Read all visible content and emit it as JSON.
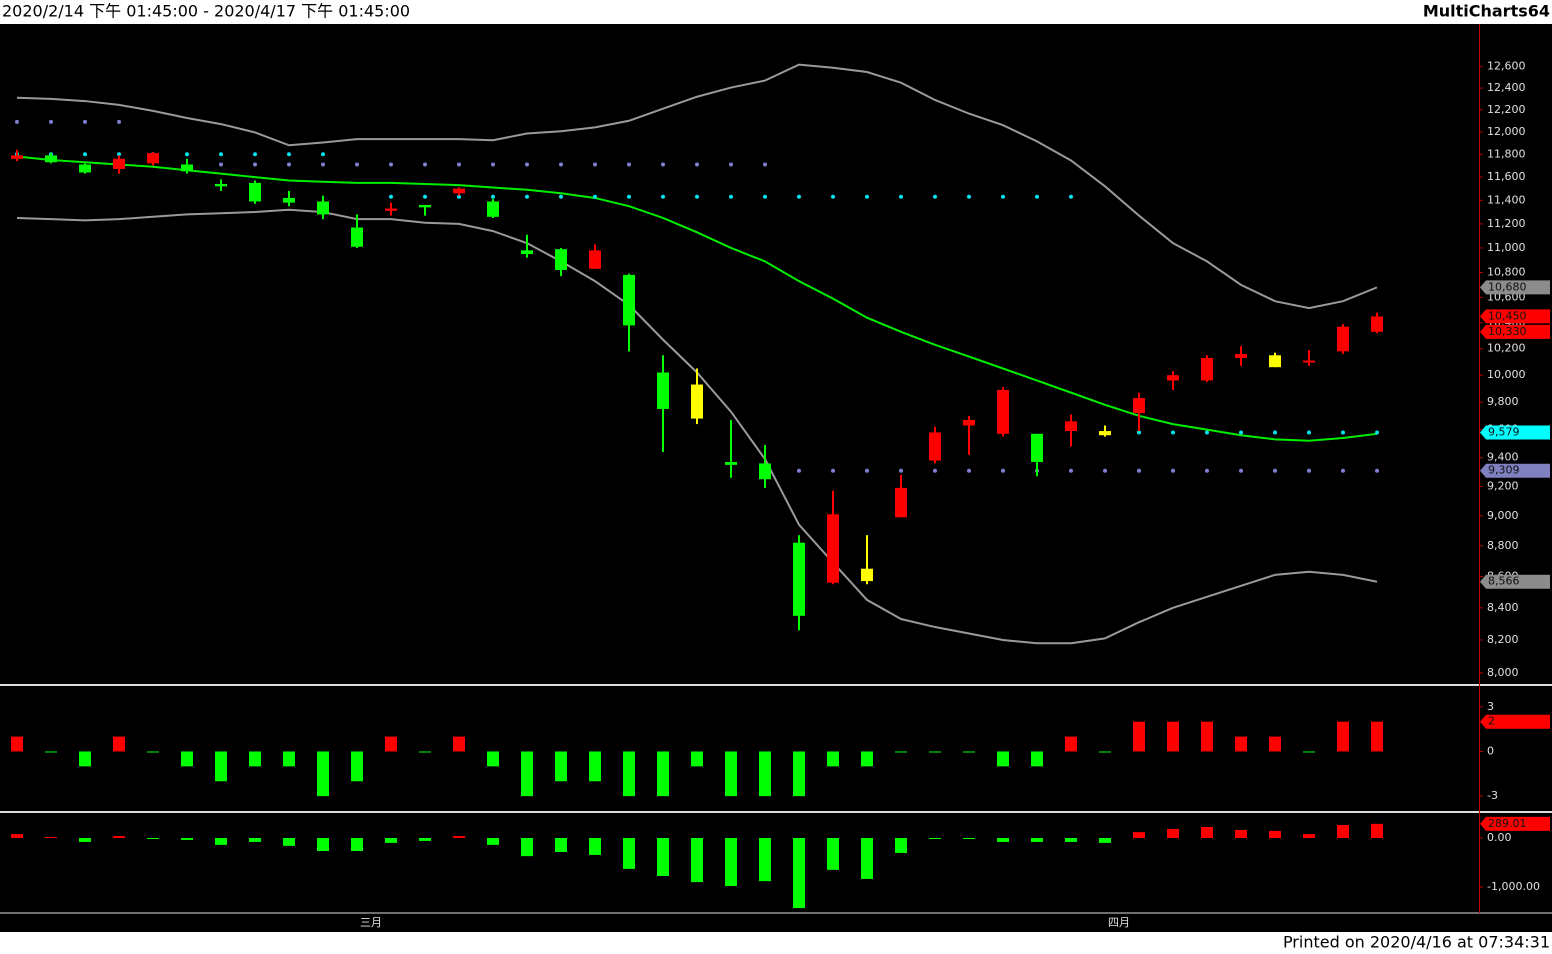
{
  "header": {
    "range": "2020/2/14 下午 01:45:00 - 2020/4/17 下午 01:45:00",
    "app": "MultiCharts64"
  },
  "footer": "Printed on 2020/4/16 at 07:34:31",
  "chart_data": [
    {
      "type": "candlestick",
      "categories": [
        null,
        null,
        null,
        null,
        null,
        null,
        null,
        null,
        null,
        null,
        "三月",
        null,
        null,
        null,
        null,
        null,
        null,
        null,
        null,
        null,
        null,
        null,
        null,
        null,
        null,
        null,
        null,
        null,
        null,
        null,
        null,
        null,
        "四月",
        null,
        null,
        null,
        null,
        null,
        null,
        null,
        null
      ],
      "open": [
        11760,
        11790,
        11710,
        11670,
        11720,
        11710,
        11540,
        11550,
        11420,
        11390,
        11170,
        11310,
        11360,
        11460,
        11390,
        10980,
        10990,
        10830,
        10780,
        10020,
        9930,
        9370,
        9360,
        8820,
        8560,
        8650,
        8990,
        9380,
        9630,
        9570,
        9570,
        9590,
        9560,
        9720,
        9960,
        9960,
        10130,
        10060,
        10100,
        10180,
        10330
      ],
      "high": [
        11840,
        11810,
        11720,
        11790,
        11820,
        11760,
        11580,
        11570,
        11480,
        11440,
        11280,
        11380,
        11360,
        11510,
        11410,
        11110,
        11000,
        11030,
        10790,
        10150,
        10050,
        9670,
        9490,
        8870,
        9170,
        8870,
        9280,
        9620,
        9700,
        9910,
        9570,
        9710,
        9630,
        9870,
        10030,
        10150,
        10220,
        10170,
        10190,
        10390,
        10480
      ],
      "low": [
        11740,
        11720,
        11630,
        11630,
        11700,
        11630,
        11480,
        11370,
        11350,
        11240,
        11000,
        11270,
        11270,
        11440,
        11250,
        10920,
        10770,
        10830,
        10180,
        9440,
        9640,
        9260,
        9190,
        8260,
        8550,
        8550,
        8990,
        9360,
        9420,
        9550,
        9270,
        9480,
        9550,
        9590,
        9890,
        9950,
        10070,
        10060,
        10070,
        10160,
        10320
      ],
      "close": [
        11790,
        11730,
        11640,
        11760,
        11810,
        11650,
        11520,
        11390,
        11380,
        11280,
        11010,
        11330,
        11340,
        11500,
        11260,
        10950,
        10820,
        10980,
        10380,
        9750,
        9680,
        9350,
        9250,
        8350,
        9010,
        8570,
        9190,
        9580,
        9670,
        9890,
        9370,
        9660,
        9590,
        9830,
        10000,
        10130,
        10160,
        10150,
        10110,
        10370,
        10450
      ],
      "candle_colors": [
        "#ff0000",
        "#00ff00",
        "#00ff00",
        "#ff0000",
        "#ff0000",
        "#00ff00",
        "#00ff00",
        "#00ff00",
        "#00ff00",
        "#00ff00",
        "#00ff00",
        "#ff0000",
        "#00ff00",
        "#ff0000",
        "#00ff00",
        "#00ff00",
        "#00ff00",
        "#ff0000",
        "#00ff00",
        "#00ff00",
        "#ffff00",
        "#00ff00",
        "#00ff00",
        "#00ff00",
        "#ff0000",
        "#ffff00",
        "#ff0000",
        "#ff0000",
        "#ff0000",
        "#ff0000",
        "#00ff00",
        "#ff0000",
        "#ffff00",
        "#ff0000",
        "#ff0000",
        "#ff0000",
        "#ff0000",
        "#ffff00",
        "#ff0000",
        "#ff0000",
        "#ff0000"
      ],
      "lines": [
        {
          "color": "#9a9a9a",
          "values": [
            12310,
            12300,
            12280,
            12245,
            12190,
            12125,
            12070,
            11995,
            11880,
            11905,
            11935,
            11935,
            11935,
            11935,
            11925,
            11985,
            12005,
            12040,
            12100,
            12210,
            12320,
            12405,
            12470,
            12620,
            12590,
            12550,
            12450,
            12290,
            12165,
            12060,
            11915,
            11745,
            11520,
            11270,
            11040,
            10890,
            10700,
            10570,
            10515,
            10570,
            10680
          ]
        },
        {
          "color": "#9a9a9a",
          "values": [
            11250,
            11240,
            11230,
            11240,
            11260,
            11280,
            11290,
            11300,
            11320,
            11300,
            11240,
            11240,
            11210,
            11200,
            11140,
            11040,
            10890,
            10730,
            10540,
            10270,
            10020,
            9730,
            9390,
            8940,
            8690,
            8450,
            8330,
            8280,
            8240,
            8200,
            8180,
            8180,
            8210,
            8310,
            8400,
            8470,
            8540,
            8610,
            8630,
            8610,
            8566
          ]
        },
        {
          "color": "#00ee00",
          "values": [
            11780,
            11750,
            11730,
            11710,
            11690,
            11660,
            11630,
            11600,
            11570,
            11560,
            11550,
            11550,
            11540,
            11530,
            11510,
            11490,
            11460,
            11420,
            11350,
            11250,
            11130,
            11000,
            10890,
            10730,
            10590,
            10440,
            10330,
            10230,
            10140,
            10050,
            9960,
            9870,
            9780,
            9700,
            9640,
            9600,
            9560,
            9530,
            9520,
            9540,
            9570
          ]
        }
      ],
      "dots": [
        {
          "color": "#8080d0",
          "values": [
            12090,
            12090,
            12090,
            12090,
            null,
            null,
            null,
            null,
            null,
            null,
            null,
            null,
            null,
            null,
            null,
            null,
            null,
            null,
            null,
            null,
            null,
            null,
            null,
            null,
            null,
            null,
            null,
            null,
            null,
            null,
            null,
            null,
            null,
            null,
            null,
            null,
            null,
            null,
            null,
            null,
            null
          ]
        },
        {
          "color": "#00e5ee",
          "values": [
            11800,
            11800,
            11800,
            11800,
            11800,
            11800,
            11800,
            11800,
            11800,
            11800,
            null,
            null,
            null,
            null,
            null,
            null,
            null,
            null,
            null,
            null,
            null,
            null,
            null,
            null,
            null,
            null,
            null,
            null,
            null,
            null,
            null,
            null,
            null,
            null,
            null,
            null,
            null,
            null,
            null,
            null,
            null
          ]
        },
        {
          "color": "#8080d0",
          "values": [
            null,
            null,
            null,
            null,
            null,
            null,
            11710,
            11710,
            11710,
            11710,
            11710,
            11710,
            11710,
            11710,
            11710,
            11710,
            11710,
            11710,
            11710,
            11710,
            11710,
            11710,
            11710,
            null,
            null,
            null,
            null,
            null,
            null,
            null,
            null,
            null,
            null,
            null,
            null,
            null,
            null,
            null,
            null,
            null,
            null
          ]
        },
        {
          "color": "#00e5ee",
          "values": [
            null,
            null,
            null,
            null,
            null,
            null,
            null,
            null,
            null,
            null,
            null,
            11430,
            11430,
            11430,
            11430,
            11430,
            11430,
            11430,
            11430,
            11430,
            11430,
            11430,
            11430,
            11430,
            11430,
            11430,
            11430,
            11430,
            11430,
            11430,
            11430,
            11430,
            null,
            null,
            null,
            null,
            null,
            null,
            null,
            null,
            null
          ]
        },
        {
          "color": "#00e5ee",
          "values": [
            null,
            null,
            null,
            null,
            null,
            null,
            null,
            null,
            null,
            null,
            null,
            null,
            null,
            null,
            null,
            null,
            null,
            null,
            null,
            null,
            null,
            null,
            null,
            null,
            null,
            null,
            null,
            null,
            null,
            null,
            null,
            null,
            null,
            9579,
            9579,
            9579,
            9579,
            9579,
            9579,
            9579,
            9579
          ]
        },
        {
          "color": "#8080d0",
          "values": [
            null,
            null,
            null,
            null,
            null,
            null,
            null,
            null,
            null,
            null,
            null,
            null,
            null,
            null,
            null,
            null,
            null,
            null,
            null,
            null,
            null,
            null,
            null,
            9309,
            9309,
            9309,
            9309,
            9309,
            9309,
            9309,
            9309,
            9309,
            9309,
            9309,
            9309,
            9309,
            9309,
            9309,
            9309,
            9309,
            9309
          ]
        }
      ],
      "log_scale": true,
      "ylim": [
        7940,
        13010
      ],
      "yticks": [
        {
          "value": 8000,
          "label": "8,000"
        },
        {
          "value": 8200,
          "label": "8,200"
        },
        {
          "value": 8400,
          "label": "8,400"
        },
        {
          "value": 8600,
          "label": "8,600"
        },
        {
          "value": 8800,
          "label": "8,800"
        },
        {
          "value": 9000,
          "label": "9,000"
        },
        {
          "value": 9200,
          "label": "9,200"
        },
        {
          "value": 9400,
          "label": "9,400"
        },
        {
          "value": 9600,
          "label": "9,600"
        },
        {
          "value": 9800,
          "label": "9,800"
        },
        {
          "value": 10000,
          "label": "10,000"
        },
        {
          "value": 10200,
          "label": "10,200"
        },
        {
          "value": 10400,
          "label": "10,400"
        },
        {
          "value": 10600,
          "label": "10,600"
        },
        {
          "value": 10800,
          "label": "10,800"
        },
        {
          "value": 11000,
          "label": "11,000"
        },
        {
          "value": 11200,
          "label": "11,200"
        },
        {
          "value": 11400,
          "label": "11,400"
        },
        {
          "value": 11600,
          "label": "11,600"
        },
        {
          "value": 11800,
          "label": "11,800"
        },
        {
          "value": 12000,
          "label": "12,000"
        },
        {
          "value": 12200,
          "label": "12,200"
        },
        {
          "value": 12400,
          "label": "12,400"
        },
        {
          "value": 12600,
          "label": "12,600"
        }
      ],
      "markers": [
        {
          "value": 10680,
          "label": "10,680",
          "color": "#8c8c8c"
        },
        {
          "value": 10450,
          "label": "10,450",
          "color": "#ff0000"
        },
        {
          "value": 10330,
          "label": "10,330",
          "color": "#ff0000"
        },
        {
          "value": 9579,
          "label": "9,579",
          "color": "#00ffff"
        },
        {
          "value": 9309,
          "label": "9,309",
          "color": "#8080c0"
        },
        {
          "value": 8566,
          "label": "8,566",
          "color": "#8c8c8c"
        }
      ]
    },
    {
      "type": "bar",
      "values": [
        1,
        0,
        -1,
        1,
        0,
        -1,
        -2,
        -1,
        -1,
        -3,
        -2,
        1,
        0,
        1,
        -1,
        -3,
        -2,
        -2,
        -3,
        -3,
        -1,
        -3,
        -3,
        -3,
        -1,
        -1,
        0,
        0,
        0,
        -1,
        -1,
        1,
        0,
        2,
        2,
        2,
        1,
        1,
        0,
        2,
        2
      ],
      "up_color": "#ff0000",
      "down_color": "#00ff00",
      "ylim": [
        -3.93,
        4.33
      ],
      "yticks": [
        -3,
        0,
        3
      ],
      "markers": [
        {
          "value": 2,
          "label": "2",
          "color": "#ff0000"
        }
      ]
    },
    {
      "type": "bar",
      "values": [
        80,
        20,
        -80,
        40,
        0,
        -40,
        -140,
        -80,
        -160,
        -265,
        -265,
        -100,
        -60,
        40,
        -140,
        -370,
        -285,
        -345,
        -630,
        -775,
        -900,
        -980,
        -880,
        -1430,
        -650,
        -835,
        -305,
        0,
        0,
        -80,
        -80,
        -80,
        -100,
        120,
        185,
        225,
        165,
        145,
        80,
        265,
        289.01
      ],
      "up_color": "#ff0000",
      "down_color": "#00ff00",
      "ylim": [
        -1510,
        490
      ],
      "yticks": [
        {
          "value": -1000,
          "label": "-1,000.00"
        },
        {
          "value": 0,
          "label": "0.00"
        }
      ],
      "markers": [
        {
          "value": 289.01,
          "label": "289.01",
          "color": "#ff0000"
        }
      ]
    }
  ]
}
